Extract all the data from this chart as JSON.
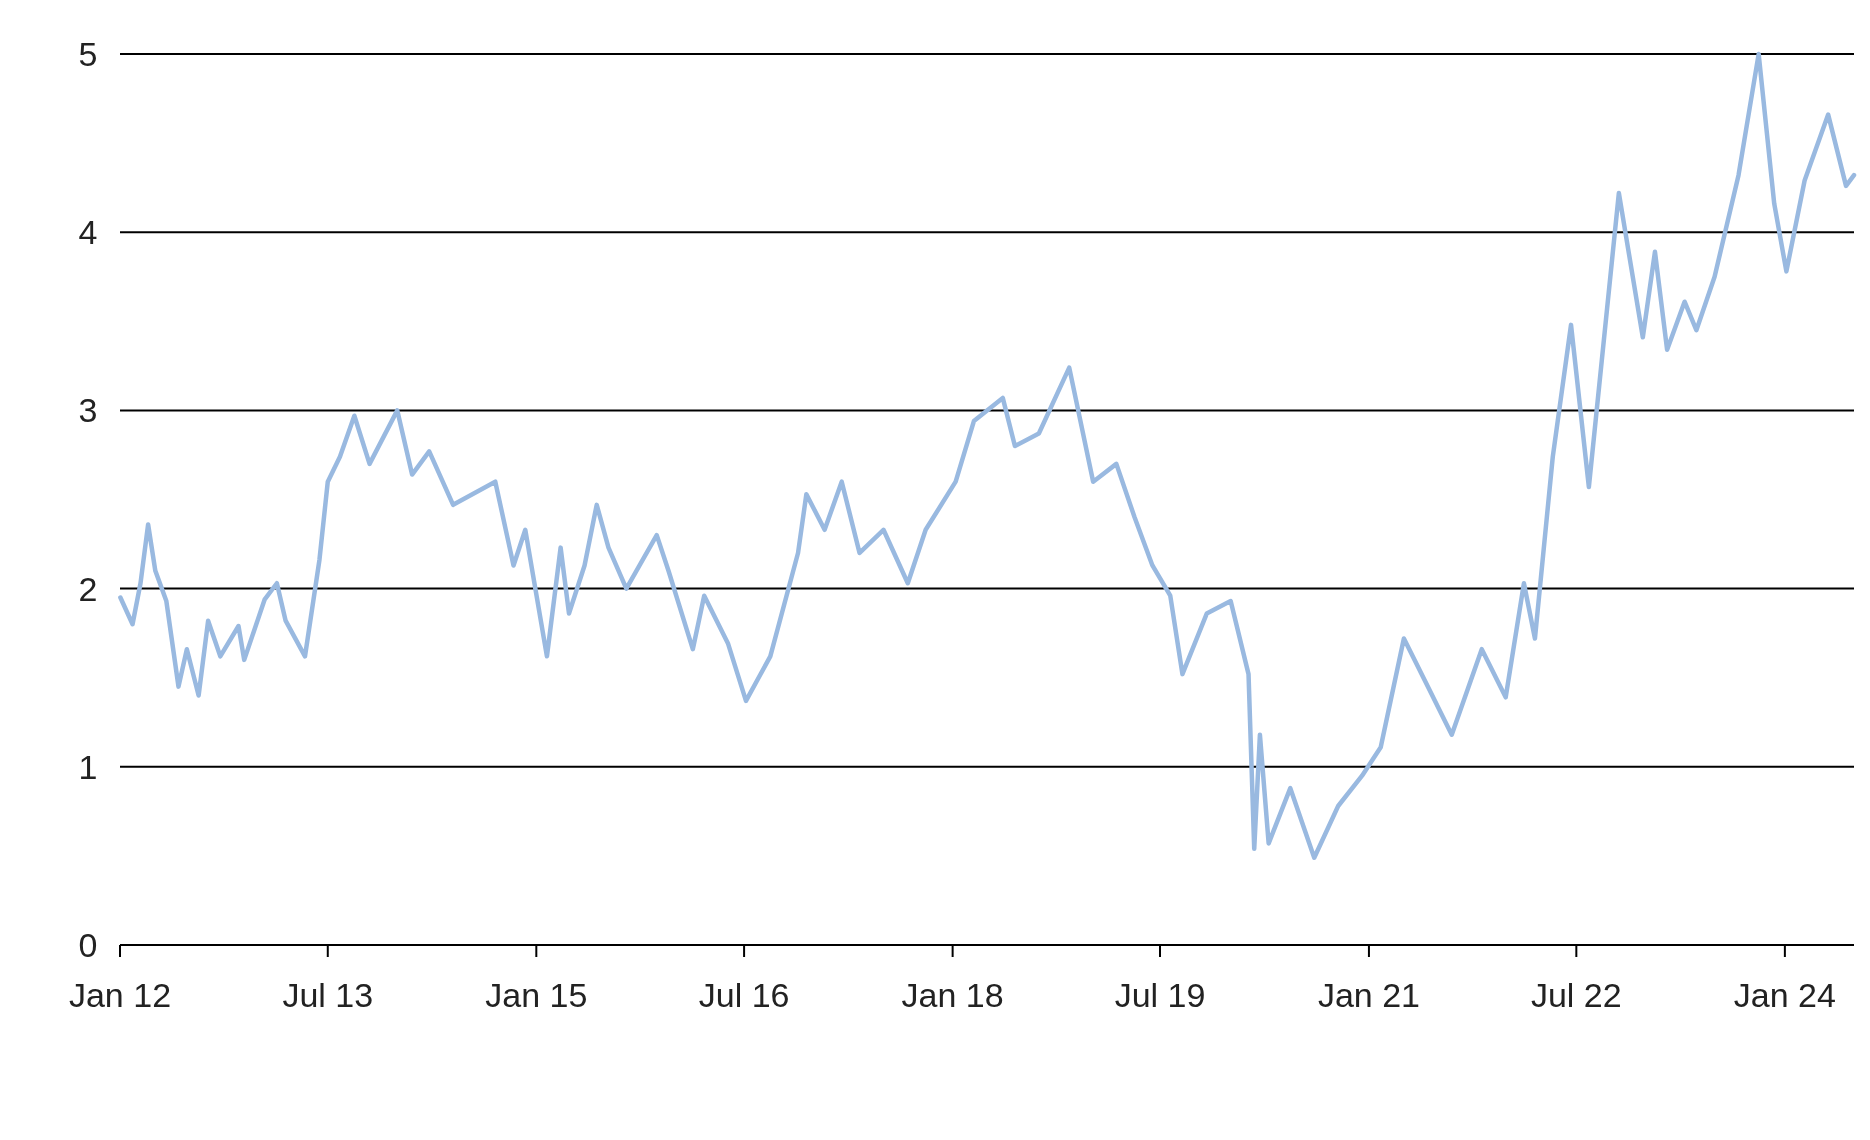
{
  "chart_data": {
    "type": "line",
    "grid": "y",
    "marker": "none",
    "line_style": "solid",
    "xlim": [
      "2012-01-01",
      "2024-07-01"
    ],
    "xticks": [
      {
        "value": "2012-01-01",
        "label": "Jan 12"
      },
      {
        "value": "2013-07-01",
        "label": "Jul 13"
      },
      {
        "value": "2015-01-01",
        "label": "Jan 15"
      },
      {
        "value": "2016-07-01",
        "label": "Jul 16"
      },
      {
        "value": "2018-01-01",
        "label": "Jan 18"
      },
      {
        "value": "2019-07-01",
        "label": "Jul 19"
      },
      {
        "value": "2021-01-01",
        "label": "Jan 21"
      },
      {
        "value": "2022-07-01",
        "label": "Jul 22"
      },
      {
        "value": "2024-01-01",
        "label": "Jan 24"
      }
    ],
    "ylim": [
      0,
      5
    ],
    "yticks": [
      0,
      1,
      2,
      3,
      4,
      5
    ],
    "series": [
      {
        "color": "#99b9e0",
        "x": [
          "2012-01-02",
          "2012-02-03",
          "2012-02-24",
          "2012-03-15",
          "2012-04-03",
          "2012-05-02",
          "2012-06-03",
          "2012-06-25",
          "2012-07-26",
          "2012-08-20",
          "2012-09-21",
          "2012-11-08",
          "2012-11-23",
          "2013-01-16",
          "2013-02-17",
          "2013-03-12",
          "2013-05-02",
          "2013-06-09",
          "2013-07-01",
          "2013-08-02",
          "2013-09-09",
          "2013-10-19",
          "2013-12-31",
          "2014-02-08",
          "2014-03-25",
          "2014-05-27",
          "2014-09-15",
          "2014-11-02",
          "2014-12-03",
          "2015-01-29",
          "2015-03-06",
          "2015-03-28",
          "2015-05-08",
          "2015-06-09",
          "2015-07-10",
          "2015-08-26",
          "2015-11-14",
          "2015-12-15",
          "2016-02-17",
          "2016-03-18",
          "2016-05-20",
          "2016-07-06",
          "2016-09-08",
          "2016-11-20",
          "2016-12-12",
          "2017-01-29",
          "2017-03-15",
          "2017-05-01",
          "2017-07-03",
          "2017-09-05",
          "2017-10-22",
          "2018-01-09",
          "2018-02-26",
          "2018-05-13",
          "2018-06-14",
          "2018-08-16",
          "2018-11-04",
          "2019-01-06",
          "2019-03-08",
          "2019-04-25",
          "2019-06-11",
          "2019-07-28",
          "2019-08-29",
          "2019-11-01",
          "2020-01-03",
          "2020-02-19",
          "2020-03-05",
          "2020-03-20",
          "2020-04-12",
          "2020-06-08",
          "2020-08-10",
          "2020-10-12",
          "2020-12-14",
          "2021-02-01",
          "2021-04-03",
          "2021-06-05",
          "2021-08-07",
          "2021-10-25",
          "2021-12-27",
          "2022-02-13",
          "2022-03-14",
          "2022-04-30",
          "2022-06-17",
          "2022-08-03",
          "2022-10-21",
          "2022-12-23",
          "2023-01-24",
          "2023-02-25",
          "2023-04-12",
          "2023-05-13",
          "2023-06-30",
          "2023-09-01",
          "2023-10-24",
          "2023-12-04",
          "2024-01-05",
          "2024-02-22",
          "2024-04-24",
          "2024-06-10",
          "2024-07-01"
        ],
        "values": [
          1.95,
          1.8,
          2.03,
          2.36,
          2.1,
          1.93,
          1.45,
          1.66,
          1.4,
          1.82,
          1.62,
          1.79,
          1.6,
          1.94,
          2.03,
          1.82,
          1.62,
          2.16,
          2.6,
          2.74,
          2.97,
          2.7,
          3.0,
          2.64,
          2.77,
          2.47,
          2.6,
          2.13,
          2.33,
          1.62,
          2.23,
          1.86,
          2.13,
          2.47,
          2.23,
          2.0,
          2.3,
          2.1,
          1.66,
          1.96,
          1.69,
          1.37,
          1.62,
          2.2,
          2.53,
          2.33,
          2.6,
          2.2,
          2.33,
          2.03,
          2.33,
          2.6,
          2.94,
          3.07,
          2.8,
          2.87,
          3.24,
          2.6,
          2.7,
          2.4,
          2.13,
          1.96,
          1.52,
          1.86,
          1.93,
          1.52,
          0.54,
          1.18,
          0.57,
          0.88,
          0.49,
          0.78,
          0.95,
          1.11,
          1.72,
          1.45,
          1.18,
          1.66,
          1.39,
          2.03,
          1.72,
          2.74,
          3.48,
          2.57,
          4.22,
          3.41,
          3.89,
          3.34,
          3.61,
          3.45,
          3.75,
          4.32,
          5.0,
          4.16,
          3.78,
          4.29,
          4.66,
          4.26,
          4.32
        ]
      }
    ]
  }
}
